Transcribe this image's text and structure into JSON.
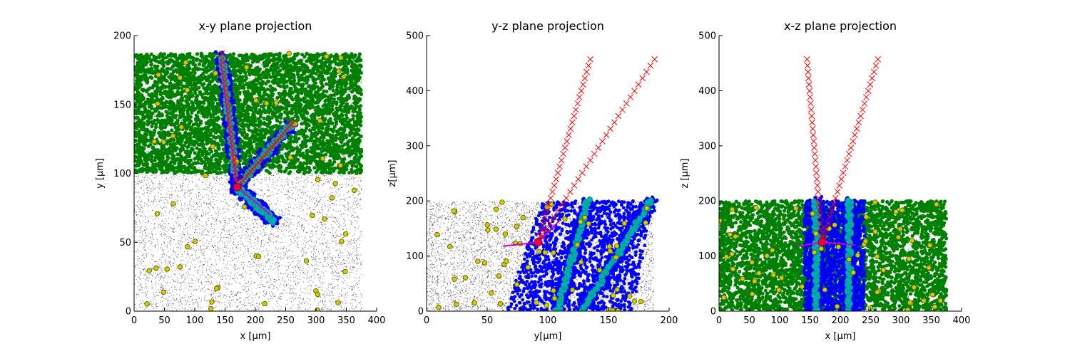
{
  "chart_data": [
    {
      "type": "scatter",
      "title": "x-y plane projection",
      "xlabel": "x [μm]",
      "ylabel": "y [μm]",
      "xlim": [
        0,
        400
      ],
      "ylim": [
        0,
        200
      ],
      "xticks": [
        "0",
        "50",
        "100",
        "150",
        "200",
        "250",
        "300",
        "350",
        "400"
      ],
      "yticks": [
        "0",
        "50",
        "100",
        "150",
        "200"
      ],
      "grid": false,
      "colors": {
        "background_points": "#000000",
        "green_cells": "#008000",
        "blue_track": "#0000ff",
        "cyan_track": "#00b0b0",
        "yellow_cells": "#cccc00",
        "trajectory": "#ff0000",
        "vertex": "#e8004a",
        "magenta_segments": "#d000d0"
      },
      "regions": {
        "background": {
          "x": [
            0,
            375
          ],
          "y": [
            0,
            187
          ]
        },
        "green": {
          "x": [
            0,
            375
          ],
          "y": [
            100,
            187
          ]
        }
      },
      "tracks": [
        {
          "from": [
            170,
            90
          ],
          "to": [
            145,
            185
          ]
        },
        {
          "from": [
            170,
            90
          ],
          "to": [
            258,
            135
          ]
        },
        {
          "from": [
            170,
            90
          ],
          "to": [
            230,
            65
          ]
        }
      ],
      "trajectories": [
        {
          "from": [
            170,
            90
          ],
          "to": [
            145,
            187
          ]
        },
        {
          "from": [
            170,
            90
          ],
          "to": [
            262,
            137
          ]
        }
      ],
      "magenta_segments": [
        {
          "from": [
            170,
            90
          ],
          "to": [
            225,
            70
          ]
        },
        {
          "from": [
            170,
            90
          ],
          "to": [
            142,
            183
          ]
        }
      ],
      "vertex": {
        "x": 170,
        "y": 90
      }
    },
    {
      "type": "scatter",
      "title": "y-z plane projection",
      "xlabel": "y[μm]",
      "ylabel": "z[μm]",
      "xlim": [
        0,
        200
      ],
      "ylim": [
        0,
        500
      ],
      "xticks": [
        "0",
        "50",
        "100",
        "150",
        "200"
      ],
      "yticks": [
        "0",
        "100",
        "200",
        "300",
        "400",
        "500"
      ],
      "grid": false,
      "colors": {
        "background_points": "#000000",
        "green_cells": "#008000",
        "blue_track": "#0000ff",
        "cyan_track": "#00b0b0",
        "yellow_cells": "#cccc00",
        "trajectory": "#ff0000",
        "vertex": "#e8004a",
        "magenta_segments": "#d000d0"
      },
      "regions": {
        "background": {
          "x": [
            0,
            187
          ],
          "y": [
            0,
            200
          ]
        }
      },
      "blue_band": {
        "x_bottom": [
          65,
          170
        ],
        "x_top": [
          95,
          187
        ],
        "y": [
          0,
          200
        ]
      },
      "tracks": [
        {
          "from": [
            108,
            0
          ],
          "to": [
            133,
            200
          ]
        },
        {
          "from": [
            128,
            0
          ],
          "to": [
            185,
            200
          ]
        }
      ],
      "trajectories": [
        {
          "from": [
            92,
            125
          ],
          "to": [
            135,
            457
          ]
        },
        {
          "from": [
            92,
            125
          ],
          "to": [
            188,
            457
          ]
        }
      ],
      "magenta_segments": [
        {
          "from": [
            92,
            125
          ],
          "to": [
            63,
            118
          ]
        },
        {
          "from": [
            92,
            125
          ],
          "to": [
            110,
            165
          ]
        }
      ],
      "vertex": {
        "x": 92,
        "y": 125
      }
    },
    {
      "type": "scatter",
      "title": "x-z plane projection",
      "xlabel": "x [μm]",
      "ylabel": "z [μm]",
      "xlim": [
        0,
        400
      ],
      "ylim": [
        0,
        500
      ],
      "xticks": [
        "0",
        "50",
        "100",
        "150",
        "200",
        "250",
        "300",
        "350",
        "400"
      ],
      "yticks": [
        "0",
        "100",
        "200",
        "300",
        "400",
        "500"
      ],
      "grid": false,
      "colors": {
        "background_points": "#000000",
        "green_cells": "#008000",
        "blue_track": "#0000ff",
        "cyan_track": "#00b0b0",
        "yellow_cells": "#cccc00",
        "trajectory": "#ff0000",
        "vertex": "#e8004a",
        "magenta_segments": "#d000d0"
      },
      "regions": {
        "background": {
          "x": [
            0,
            375
          ],
          "y": [
            0,
            200
          ]
        },
        "green": {
          "x": [
            0,
            375
          ],
          "y": [
            0,
            200
          ]
        }
      },
      "blue_band": {
        "x_bottom": [
          140,
          240
        ],
        "x_top": [
          140,
          240
        ],
        "y": [
          0,
          200
        ]
      },
      "tracks": [
        {
          "from": [
            160,
            0
          ],
          "to": [
            160,
            200
          ]
        },
        {
          "from": [
            215,
            0
          ],
          "to": [
            215,
            200
          ]
        }
      ],
      "trajectories": [
        {
          "from": [
            170,
            125
          ],
          "to": [
            145,
            457
          ]
        },
        {
          "from": [
            170,
            125
          ],
          "to": [
            262,
            457
          ]
        }
      ],
      "magenta_segments": [
        {
          "from": [
            170,
            125
          ],
          "to": [
            130,
            118
          ]
        },
        {
          "from": [
            170,
            125
          ],
          "to": [
            225,
            120
          ]
        }
      ],
      "vertex": {
        "x": 170,
        "y": 125
      }
    }
  ]
}
